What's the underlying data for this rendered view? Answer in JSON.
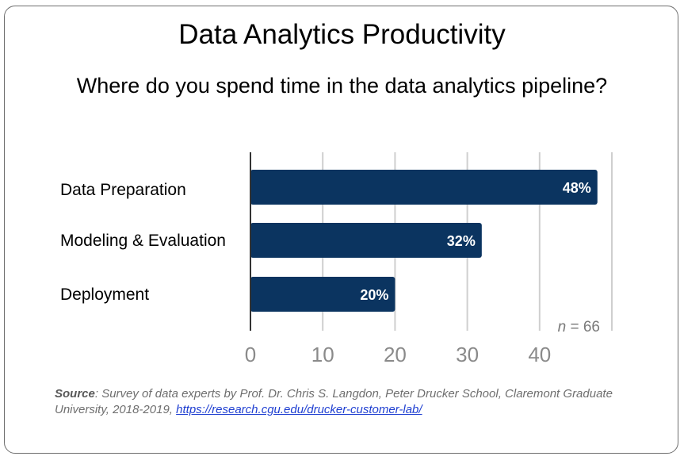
{
  "title": "Data Analytics Productivity",
  "subtitle": "Where do you spend time in the data analytics pipeline?",
  "chart_data": {
    "type": "bar",
    "orientation": "horizontal",
    "categories": [
      "Data Preparation",
      "Modeling & Evaluation",
      "Deployment"
    ],
    "values": [
      48,
      32,
      20
    ],
    "value_labels": [
      "48%",
      "32%",
      "20%"
    ],
    "xlim": [
      0,
      50
    ],
    "xticks": [
      0,
      10,
      20,
      30,
      40
    ],
    "xtick_labels": [
      "0",
      "10",
      "20",
      "30",
      "40"
    ],
    "grid": true,
    "bar_color": "#0b3460",
    "annotation": {
      "var": "n",
      "text": " = 66"
    }
  },
  "source": {
    "label": "Source",
    "text": ": Survey of data experts by Prof. Dr. Chris S. Langdon, Peter Drucker School, Claremont Graduate University, 2018-2019, ",
    "link": "https://research.cgu.edu/drucker-customer-lab/"
  }
}
